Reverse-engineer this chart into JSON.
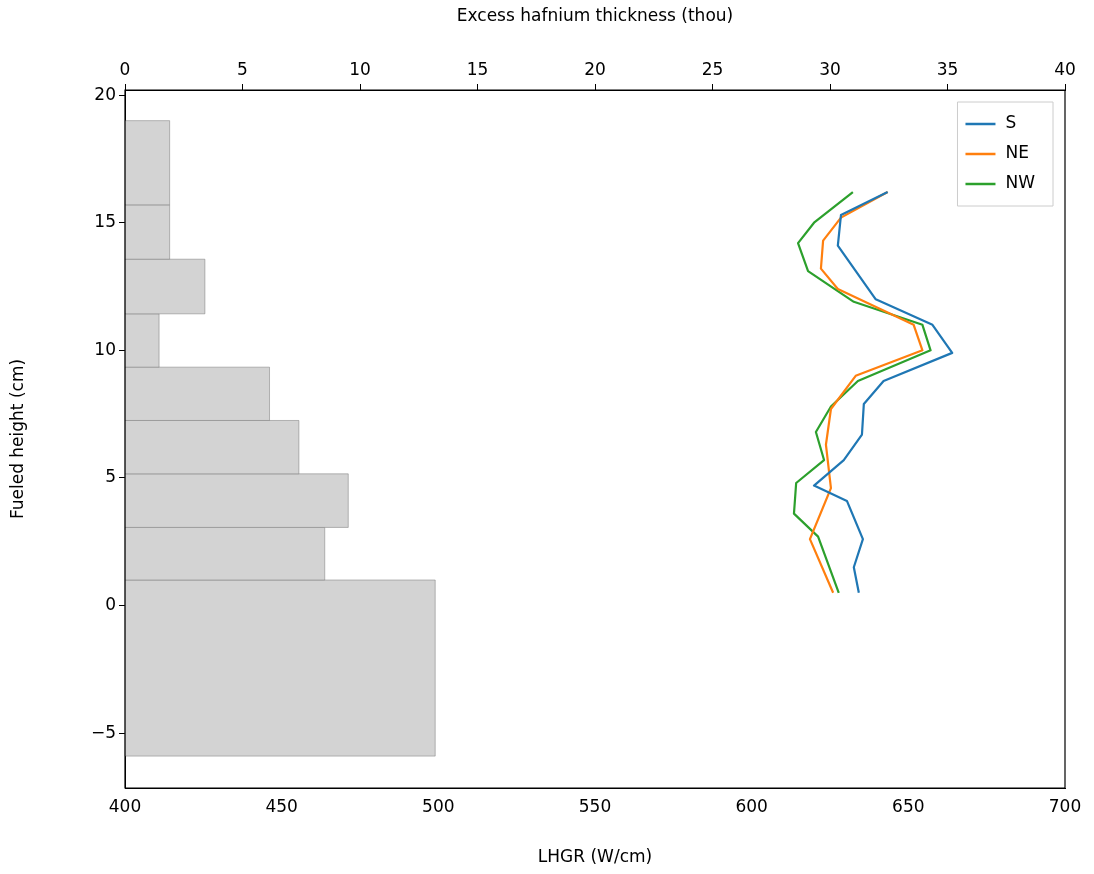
{
  "chart_data": {
    "type": "line",
    "xlabel": "LHGR (W/cm)",
    "x2label": "Excess hafnium thickness (thou)",
    "ylabel": "Fueled height (cm)",
    "xlim": [
      400,
      700
    ],
    "xticks": [
      400,
      450,
      500,
      550,
      600,
      650,
      700
    ],
    "x2lim": [
      0,
      40
    ],
    "x2ticks": [
      0,
      5,
      10,
      15,
      20,
      25,
      30,
      35,
      40
    ],
    "ylim": [
      -7.15,
      20.2
    ],
    "yticks": [
      -5,
      0,
      5,
      10,
      15,
      20
    ],
    "legend": "top right",
    "orientation": "horizontal",
    "grid": false,
    "marker": "none",
    "line_style": "solid",
    "series": [
      {
        "type": "histogram",
        "axis": "x2",
        "color": "#d3d3d3",
        "bins": [
          -5.9,
          1.0,
          3.06,
          5.16,
          7.25,
          9.34,
          11.43,
          13.57,
          15.7,
          19.0
        ],
        "values": [
          13.2,
          8.5,
          9.5,
          7.4,
          6.15,
          1.45,
          3.4,
          1.9,
          1.9
        ]
      },
      {
        "name": "S",
        "color": "#1f77b4",
        "values": [
          634.2,
          632.6,
          635.5,
          630.4,
          619.9,
          629.4,
          635.2,
          635.8,
          642.1,
          664.0,
          657.7,
          639.6,
          627.5,
          628.5,
          643.4
        ],
        "x": [
          0.5,
          1.5,
          2.6,
          4.1,
          4.7,
          5.7,
          6.7,
          7.9,
          8.8,
          9.9,
          11.0,
          12.0,
          14.1,
          15.3,
          16.2
        ]
      },
      {
        "name": "NE",
        "color": "#ff7f0e",
        "values": [
          626.0,
          618.6,
          625.3,
          623.7,
          625.3,
          633.2,
          654.5,
          651.7,
          627.5,
          622.1,
          622.8,
          628.5,
          643.4
        ],
        "x": [
          0.5,
          2.6,
          4.6,
          6.3,
          7.7,
          9.0,
          10.0,
          11.0,
          12.4,
          13.2,
          14.3,
          15.2,
          16.2
        ]
      },
      {
        "name": "NW",
        "color": "#2ca02c",
        "values": [
          627.8,
          621.2,
          613.5,
          614.2,
          623.1,
          620.5,
          625.3,
          633.9,
          657.1,
          654.5,
          632.6,
          618.0,
          614.8,
          619.9,
          632.3
        ],
        "x": [
          0.5,
          2.7,
          3.6,
          4.8,
          5.7,
          6.8,
          7.8,
          8.8,
          10.0,
          11.0,
          11.9,
          13.1,
          14.2,
          15.0,
          16.2
        ]
      }
    ]
  }
}
